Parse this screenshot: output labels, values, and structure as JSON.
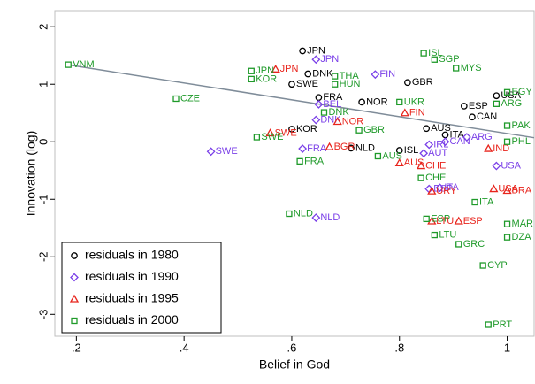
{
  "chart_data": {
    "type": "scatter",
    "x_label": "Belief in God",
    "y_label": "Innovation (log)",
    "xlim": [
      0.16,
      1.05
    ],
    "ylim": [
      -3.38,
      2.28
    ],
    "xticks": [
      {
        "value": 0.2,
        "label": ".2"
      },
      {
        "value": 0.4,
        "label": ".4"
      },
      {
        "value": 0.6,
        "label": ".6"
      },
      {
        "value": 0.8,
        "label": ".8"
      },
      1
    ],
    "yticks": [
      -3,
      -2,
      -1,
      0,
      1,
      2
    ],
    "legend": "lower left",
    "fit_line": {
      "color": "#7f8c99",
      "x": [
        0.19,
        1.05
      ],
      "values": [
        1.33,
        0.07
      ]
    },
    "series": [
      {
        "name": "residuals in 1980",
        "marker": "circle",
        "color": "#000000",
        "x": [
          0.62,
          0.63,
          0.6,
          0.65,
          0.73,
          0.6,
          0.71,
          0.8,
          0.815,
          0.92,
          0.935,
          0.85,
          0.885,
          0.98
        ],
        "values": [
          1.58,
          1.18,
          1.0,
          0.77,
          0.69,
          0.22,
          -0.11,
          -0.15,
          1.03,
          0.62,
          0.43,
          0.23,
          0.12,
          0.8
        ],
        "labels": [
          "JPN",
          "DNK",
          "SWE",
          "FRA",
          "NOR",
          "KOR",
          "NLD",
          "ISL",
          "GBR",
          "ESP",
          "CAN",
          "AUS",
          "ITA",
          "USA"
        ]
      },
      {
        "name": "residuals in 1990",
        "marker": "diamond",
        "color": "#7a3fe8",
        "x": [
          0.645,
          0.755,
          0.45,
          0.62,
          0.645,
          0.645,
          0.65,
          0.855,
          0.845,
          0.885,
          0.925,
          0.855,
          0.875,
          0.98
        ],
        "values": [
          1.43,
          1.17,
          -0.17,
          -0.12,
          -1.32,
          0.38,
          0.65,
          -0.05,
          -0.2,
          0.0,
          0.08,
          -0.82,
          -0.8,
          -0.42
        ],
        "labels": [
          "JPN",
          "FIN",
          "SWE",
          "FRA",
          "NLD",
          "DNK",
          "BEL",
          "IRL",
          "AUT",
          "CAN",
          "ARG",
          "ESP",
          "ITA",
          "USA"
        ]
      },
      {
        "name": "residuals in 1995",
        "marker": "triangle",
        "color": "#e8241c",
        "x": [
          0.57,
          0.56,
          0.67,
          0.685,
          0.81,
          0.8,
          0.84,
          0.91,
          0.86,
          0.86,
          0.975,
          0.965,
          1.0
        ],
        "values": [
          1.26,
          0.15,
          -0.09,
          0.35,
          0.5,
          -0.37,
          -0.42,
          -1.38,
          -1.38,
          -0.86,
          -0.82,
          -0.12,
          -0.85
        ],
        "labels": [
          "JPN",
          "SWE",
          "BGR",
          "NOR",
          "FIN",
          "AUS",
          "CHE",
          "ESP",
          "LTU",
          "URY",
          "USA",
          "IND",
          "BRA"
        ]
      },
      {
        "name": "residuals in 2000",
        "marker": "square",
        "color": "#1f9a2a",
        "x": [
          0.185,
          0.525,
          0.525,
          0.385,
          0.535,
          0.615,
          0.68,
          0.68,
          0.845,
          0.865,
          0.905,
          0.66,
          0.8,
          0.725,
          0.76,
          0.85,
          0.865,
          0.91,
          0.955,
          0.965,
          1.0,
          1.0,
          0.94,
          0.595,
          0.84,
          0.98,
          1.0,
          1.0,
          1.0
        ],
        "values": [
          1.34,
          1.23,
          1.09,
          0.75,
          0.08,
          -0.34,
          1.14,
          1.0,
          1.54,
          1.43,
          1.28,
          0.51,
          0.69,
          0.2,
          -0.25,
          -1.34,
          -1.62,
          -1.78,
          -2.15,
          -3.18,
          -1.43,
          -1.66,
          -1.05,
          -1.25,
          -0.63,
          0.66,
          0.86,
          0.28,
          0.0
        ],
        "labels": [
          "VNM",
          "JPN",
          "KOR",
          "CZE",
          "SWE",
          "FRA",
          "THA",
          "HUN",
          "ISL",
          "SGP",
          "MYS",
          "DNK",
          "UKR",
          "GBR",
          "AUS",
          "ESP",
          "LTU",
          "GRC",
          "CYP",
          "PRT",
          "MAR",
          "DZA",
          "ITA",
          "NLD",
          "CHE",
          "ARG",
          "EGY",
          "PAK",
          "PHL"
        ]
      }
    ]
  }
}
